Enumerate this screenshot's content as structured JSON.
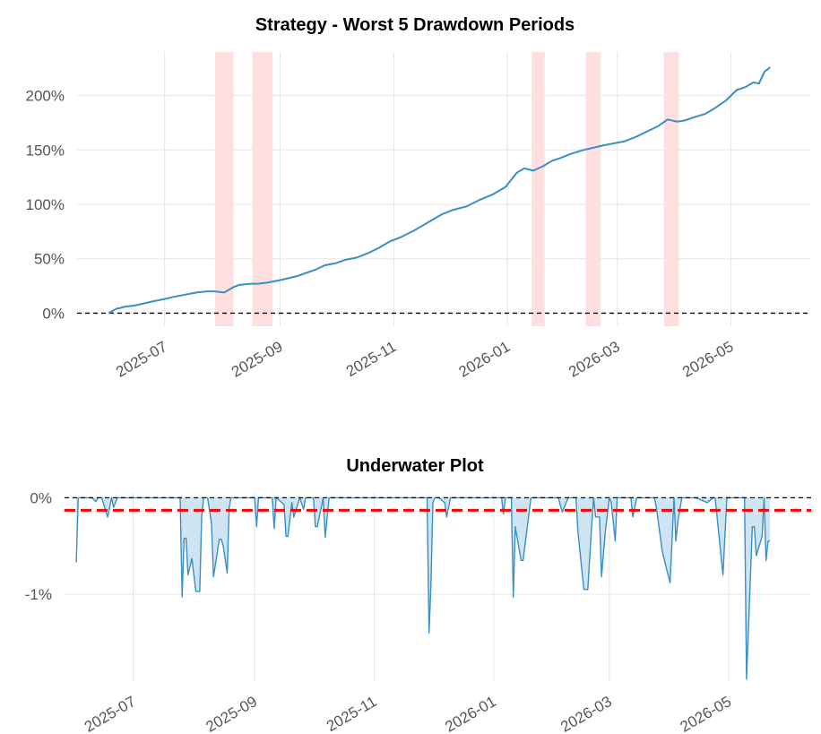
{
  "chart_data": [
    {
      "type": "line",
      "title": "Strategy - Worst 5 Drawdown Periods",
      "xlabel": "",
      "ylabel": "",
      "x_ticks": [
        "2025-07",
        "2025-09",
        "2025-11",
        "2026-01",
        "2026-03",
        "2026-05"
      ],
      "y_ticks": [
        "0%",
        "50%",
        "100%",
        "150%",
        "200%"
      ],
      "ylim": [
        -12,
        240
      ],
      "xlim": [
        "2025-05-15",
        "2026-06-13"
      ],
      "line_color": "#3a8fc4",
      "shade_color": "#ffe0e0",
      "baseline": 0,
      "series": [
        {
          "x": [
            "2025-06-01",
            "2025-06-05",
            "2025-06-10",
            "2025-06-15",
            "2025-06-20",
            "2025-06-25",
            "2025-07-01",
            "2025-07-06",
            "2025-07-12",
            "2025-07-18",
            "2025-07-24",
            "2025-07-28",
            "2025-08-02",
            "2025-08-07",
            "2025-08-10",
            "2025-08-16",
            "2025-08-20",
            "2025-08-25",
            "2025-08-31",
            "2025-09-05",
            "2025-09-10",
            "2025-09-15",
            "2025-09-20",
            "2025-09-25",
            "2025-10-01",
            "2025-10-06",
            "2025-10-12",
            "2025-10-18",
            "2025-10-24",
            "2025-10-30",
            "2025-11-05",
            "2025-11-12",
            "2025-11-20",
            "2025-11-27",
            "2025-12-03",
            "2025-12-10",
            "2025-12-17",
            "2025-12-24",
            "2025-12-31",
            "2026-01-06",
            "2026-01-10",
            "2026-01-15",
            "2026-01-20",
            "2026-01-25",
            "2026-01-30",
            "2026-02-05",
            "2026-02-11",
            "2026-02-16",
            "2026-02-21",
            "2026-02-27",
            "2026-03-05",
            "2026-03-11",
            "2026-03-17",
            "2026-03-23",
            "2026-03-28",
            "2026-04-02",
            "2026-04-06",
            "2026-04-11",
            "2026-04-17",
            "2026-04-22",
            "2026-04-28",
            "2026-05-04",
            "2026-05-09",
            "2026-05-13",
            "2026-05-16",
            "2026-05-19",
            "2026-05-22"
          ],
          "values": [
            0,
            4,
            6,
            7,
            9,
            11,
            13,
            15,
            17,
            19,
            20,
            20,
            19,
            24,
            26,
            27,
            27,
            28,
            30,
            32,
            34,
            37,
            40,
            44,
            46,
            49,
            51,
            55,
            60,
            66,
            70,
            76,
            84,
            91,
            95,
            98,
            104,
            109,
            116,
            129,
            133,
            131,
            135,
            140,
            143,
            147,
            150,
            152,
            154,
            156,
            158,
            162,
            167,
            172,
            178,
            176,
            177,
            180,
            183,
            188,
            195,
            205,
            208,
            212,
            211,
            222,
            226
          ]
        }
      ],
      "drawdown_periods": [
        [
          "2025-07-28",
          "2025-08-07"
        ],
        [
          "2025-08-17",
          "2025-08-28"
        ],
        [
          "2026-01-14",
          "2026-01-21"
        ],
        [
          "2026-02-12",
          "2026-02-20"
        ],
        [
          "2026-03-26",
          "2026-04-03"
        ]
      ]
    },
    {
      "type": "area",
      "title": "Underwater Plot",
      "xlabel": "",
      "ylabel": "",
      "x_ticks": [
        "2025-07",
        "2025-09",
        "2025-11",
        "2026-01",
        "2026-03",
        "2026-05"
      ],
      "y_ticks": [
        "0%",
        "-1%"
      ],
      "ylim": [
        -1.9,
        0.05
      ],
      "xlim": [
        "2025-05-27",
        "2026-06-12"
      ],
      "line_color": "#3a8fc4",
      "fill_color": "#cfe4f2",
      "baseline": 0,
      "average_drawdown": -0.13,
      "average_line_color": "#ff0000",
      "series": [
        {
          "x": [
            "2025-06-02",
            "2025-06-03",
            "2025-06-04",
            "2025-06-10",
            "2025-06-12",
            "2025-06-13",
            "2025-06-15",
            "2025-06-18",
            "2025-06-20",
            "2025-06-21",
            "2025-06-23",
            "2025-07-10",
            "2025-07-20",
            "2025-07-25",
            "2025-07-26",
            "2025-07-27",
            "2025-07-28",
            "2025-07-29",
            "2025-07-31",
            "2025-08-02",
            "2025-08-04",
            "2025-08-05",
            "2025-08-06",
            "2025-08-08",
            "2025-08-10",
            "2025-08-11",
            "2025-08-14",
            "2025-08-15",
            "2025-08-16",
            "2025-08-18",
            "2025-08-19",
            "2025-08-20",
            "2025-08-22",
            "2025-08-24",
            "2025-09-01",
            "2025-09-02",
            "2025-09-03",
            "2025-09-06",
            "2025-09-10",
            "2025-09-11",
            "2025-09-12",
            "2025-09-16",
            "2025-09-17",
            "2025-09-18",
            "2025-09-20",
            "2025-09-21",
            "2025-09-24",
            "2025-09-26",
            "2025-09-27",
            "2025-10-01",
            "2025-10-02",
            "2025-10-03",
            "2025-10-06",
            "2025-10-07",
            "2025-10-09",
            "2025-10-10",
            "2025-10-12",
            "2025-10-20",
            "2025-11-01",
            "2025-11-10",
            "2025-11-20",
            "2025-11-28",
            "2025-11-29",
            "2025-11-30",
            "2025-12-01",
            "2025-12-02",
            "2025-12-04",
            "2025-12-07",
            "2025-12-08",
            "2025-12-10",
            "2025-12-20",
            "2025-12-30",
            "2026-01-05",
            "2026-01-06",
            "2026-01-07",
            "2026-01-10",
            "2026-01-11",
            "2026-01-12",
            "2026-01-15",
            "2026-01-16",
            "2026-01-20",
            "2026-01-28",
            "2026-02-03",
            "2026-02-05",
            "2026-02-08",
            "2026-02-12",
            "2026-02-13",
            "2026-02-16",
            "2026-02-18",
            "2026-02-20",
            "2026-02-21",
            "2026-02-22",
            "2026-02-24",
            "2026-02-25",
            "2026-02-27",
            "2026-03-01",
            "2026-03-02",
            "2026-03-04",
            "2026-03-05",
            "2026-03-12",
            "2026-03-13",
            "2026-03-15",
            "2026-03-24",
            "2026-03-25",
            "2026-03-28",
            "2026-03-30",
            "2026-04-01",
            "2026-04-03",
            "2026-04-04",
            "2026-04-05",
            "2026-04-07",
            "2026-04-09",
            "2026-04-10",
            "2026-04-14",
            "2026-04-20",
            "2026-04-23",
            "2026-04-24",
            "2026-04-28",
            "2026-04-30",
            "2026-05-01",
            "2026-05-09",
            "2026-05-10",
            "2026-05-13",
            "2026-05-14",
            "2026-05-15",
            "2026-05-18",
            "2026-05-19",
            "2026-05-20",
            "2026-05-21",
            "2026-05-22"
          ],
          "values": [
            -0.67,
            0,
            0,
            0,
            -0.04,
            0,
            0,
            -0.2,
            0,
            -0.1,
            0,
            0,
            0,
            0,
            -1.03,
            -0.42,
            -0.42,
            -0.8,
            -0.63,
            -0.97,
            -0.97,
            -0.2,
            0,
            0,
            -0.27,
            -0.82,
            -0.43,
            -0.43,
            -0.5,
            -0.78,
            -0.1,
            0,
            0,
            0,
            0,
            -0.3,
            0,
            0,
            0,
            -0.32,
            0,
            -0.07,
            -0.4,
            -0.4,
            -0.05,
            -0.2,
            0,
            -0.12,
            0,
            0,
            -0.3,
            -0.3,
            0,
            -0.41,
            0,
            0,
            0,
            0,
            0,
            0,
            0,
            0,
            -1.4,
            -0.9,
            -0.05,
            0,
            0,
            -0.05,
            -0.2,
            0,
            0,
            0,
            0,
            -0.17,
            0,
            0,
            -1.03,
            -0.3,
            -0.65,
            -0.65,
            0,
            0,
            0,
            -0.15,
            0,
            0,
            -0.35,
            -0.95,
            -0.95,
            -0.3,
            0,
            -0.2,
            -0.2,
            -0.82,
            -0.35,
            0,
            -0.05,
            -0.45,
            0,
            0,
            -0.2,
            0,
            0,
            -0.1,
            -0.55,
            -0.72,
            -0.88,
            0,
            -0.45,
            -0.25,
            0,
            0,
            0,
            0,
            -0.05,
            0,
            0,
            -0.8,
            0,
            0,
            0,
            -1.88,
            -0.3,
            -0.3,
            -0.6,
            -0.4,
            0,
            -0.65,
            -0.45,
            -0.45
          ]
        }
      ]
    }
  ]
}
